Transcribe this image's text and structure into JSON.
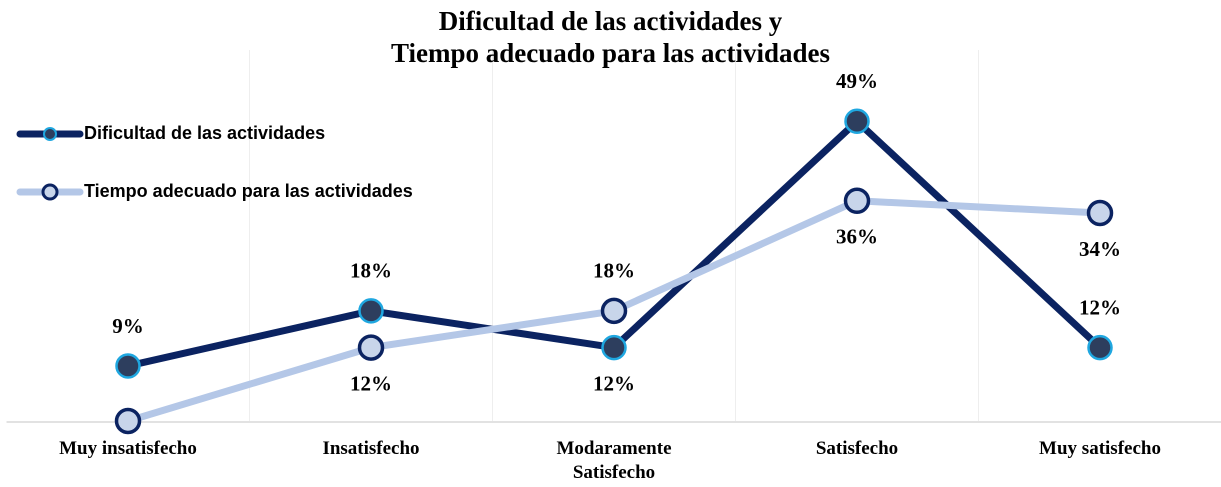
{
  "chart_data": {
    "type": "line",
    "title": "Dificultad de las actividades y\nTiempo adecuado para las actividades",
    "categories": [
      "Muy insatisfecho",
      "Insatisfecho",
      "Modaramente Satisfecho",
      "Satisfecho",
      "Muy satisfecho"
    ],
    "series": [
      {
        "name": "Dificultad de las actividades",
        "color": "#0b2361",
        "values": [
          9,
          18,
          12,
          49,
          12
        ],
        "value_labels": [
          "9%",
          "18%",
          "12%",
          "49%",
          "12%"
        ]
      },
      {
        "name": "Tiempo adecuado para las actividades",
        "color": "#b4c7e7",
        "values": [
          0,
          12,
          18,
          36,
          34
        ],
        "value_labels": [
          null,
          "12%",
          "18%",
          "36%",
          "34%"
        ]
      }
    ],
    "ylim": [
      0,
      60
    ],
    "grid": true,
    "legend": "top-left"
  }
}
